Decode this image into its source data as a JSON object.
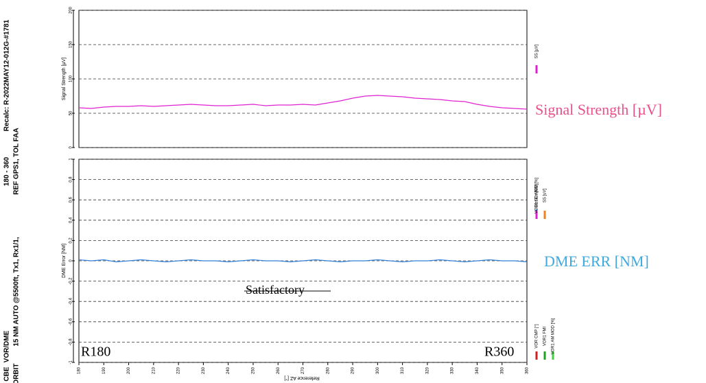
{
  "header": {
    "lines": [
      "Recalc: R-2022MAY12-012G-#1781",
      "180 - 360",
      "VOR/DME",
      "CBE",
      "REF GPS1, TOL FAA",
      "15 NM AUTO @5500ft, Tx1, Rx1/1,",
      "ORBIT"
    ]
  },
  "annotations": {
    "signal": "Signal Strength [µV]",
    "dme": "DME ERR [NM]",
    "status": "Satisfactory",
    "start": "R180",
    "end": "R360"
  },
  "legend_extra": [
    "VOR1 SC MOD [%]",
    "SS [uV]",
    "VOR CMP [°]",
    "VOR1 FMI",
    "VOR1 AM MOD [%]"
  ],
  "chart_data": [
    {
      "type": "line",
      "ylabel": "Signal Strength [µV]",
      "xlabel": "Reference AZ [°]",
      "grid": true,
      "x": [
        180,
        185,
        190,
        195,
        200,
        205,
        210,
        215,
        220,
        225,
        230,
        235,
        240,
        245,
        250,
        255,
        260,
        265,
        270,
        275,
        280,
        285,
        290,
        295,
        300,
        305,
        310,
        315,
        320,
        325,
        330,
        335,
        340,
        345,
        350,
        355,
        360
      ],
      "xlim": [
        180,
        360
      ],
      "xticks": [
        180,
        190,
        200,
        210,
        220,
        230,
        240,
        250,
        260,
        270,
        280,
        290,
        300,
        310,
        320,
        330,
        340,
        350,
        360
      ],
      "ylim": [
        0,
        200
      ],
      "yticks": [
        0,
        50,
        100,
        150,
        200
      ],
      "series": [
        {
          "name": "SS [µV]",
          "color": "#e020d0",
          "values": [
            58,
            57,
            59,
            60,
            60,
            61,
            60,
            61,
            62,
            63,
            62,
            61,
            61,
            62,
            63,
            61,
            62,
            62,
            63,
            62,
            65,
            68,
            72,
            75,
            76,
            75,
            74,
            72,
            71,
            70,
            68,
            67,
            63,
            60,
            58,
            57,
            56
          ]
        }
      ]
    },
    {
      "type": "line",
      "ylabel": "DME Error [NM]",
      "grid": true,
      "x": [
        180,
        185,
        190,
        195,
        200,
        205,
        210,
        215,
        220,
        225,
        230,
        235,
        240,
        245,
        250,
        255,
        260,
        265,
        270,
        275,
        280,
        285,
        290,
        295,
        300,
        305,
        310,
        315,
        320,
        325,
        330,
        335,
        340,
        345,
        350,
        355,
        360
      ],
      "xlim": [
        180,
        360
      ],
      "ylim": [
        -1,
        1
      ],
      "yticks": [
        -1,
        -0.8,
        -0.6,
        -0.4,
        -0.2,
        0,
        0.2,
        0.4,
        0.6,
        0.8,
        1
      ],
      "series": [
        {
          "name": "Dist Err [NM]",
          "color": "#2f7fd8",
          "values": [
            0.01,
            0,
            0.01,
            -0.01,
            0,
            0.01,
            0,
            -0.01,
            0,
            0.01,
            0,
            0,
            -0.01,
            0,
            0.01,
            0,
            0,
            -0.01,
            0,
            0.01,
            0,
            -0.01,
            0,
            0,
            0.01,
            0,
            -0.01,
            0,
            0,
            0.01,
            0,
            -0.01,
            0,
            0.01,
            0,
            0,
            -0.01
          ]
        }
      ]
    }
  ]
}
